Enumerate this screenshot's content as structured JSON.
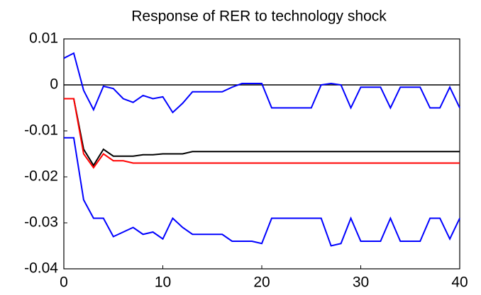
{
  "chart_data": {
    "type": "line",
    "title": "Response of RER to technology shock",
    "x": [
      0,
      1,
      2,
      3,
      4,
      5,
      6,
      7,
      8,
      9,
      10,
      11,
      12,
      13,
      14,
      15,
      16,
      17,
      18,
      19,
      20,
      21,
      22,
      23,
      24,
      25,
      26,
      27,
      28,
      29,
      30,
      31,
      32,
      33,
      34,
      35,
      36,
      37,
      38,
      39,
      40
    ],
    "series": [
      {
        "color": "#0000ff",
        "values": [
          0.0058,
          0.0069,
          -0.0012,
          -0.0054,
          -0.0003,
          -0.0008,
          -0.003,
          -0.0038,
          -0.0023,
          -0.003,
          -0.0026,
          -0.006,
          -0.004,
          -0.0015,
          -0.0015,
          -0.0015,
          -0.0015,
          -0.0005,
          0.0003,
          0.0003,
          0.0003,
          -0.005,
          -0.005,
          -0.005,
          -0.005,
          -0.005,
          0,
          0.0003,
          0,
          -0.005,
          -0.0005,
          -0.0005,
          -0.0005,
          -0.005,
          -0.0005,
          -0.0005,
          -0.0005,
          -0.005,
          -0.005,
          -0.0005,
          -0.005
        ]
      },
      {
        "color": "#000000",
        "values": [
          -0.003,
          -0.003,
          -0.014,
          -0.0175,
          -0.014,
          -0.0155,
          -0.0155,
          -0.0155,
          -0.0152,
          -0.0152,
          -0.015,
          -0.015,
          -0.015,
          -0.0145,
          -0.0145,
          -0.0145,
          -0.0145,
          -0.0145,
          -0.0145,
          -0.0145,
          -0.0145,
          -0.0145,
          -0.0145,
          -0.0145,
          -0.0145,
          -0.0145,
          -0.0145,
          -0.0145,
          -0.0145,
          -0.0145,
          -0.0145,
          -0.0145,
          -0.0145,
          -0.0145,
          -0.0145,
          -0.0145,
          -0.0145,
          -0.0145,
          -0.0145,
          -0.0145,
          -0.0145
        ]
      },
      {
        "color": "#ff0000",
        "values": [
          -0.003,
          -0.003,
          -0.015,
          -0.018,
          -0.015,
          -0.0165,
          -0.0165,
          -0.017,
          -0.017,
          -0.017,
          -0.017,
          -0.017,
          -0.017,
          -0.017,
          -0.017,
          -0.017,
          -0.017,
          -0.017,
          -0.017,
          -0.017,
          -0.017,
          -0.017,
          -0.017,
          -0.017,
          -0.017,
          -0.017,
          -0.017,
          -0.017,
          -0.017,
          -0.017,
          -0.017,
          -0.017,
          -0.017,
          -0.017,
          -0.017,
          -0.017,
          -0.017,
          -0.017,
          -0.017,
          -0.017,
          -0.017
        ]
      },
      {
        "color": "#0000ff",
        "values": [
          -0.0115,
          -0.0115,
          -0.025,
          -0.029,
          -0.029,
          -0.033,
          -0.032,
          -0.031,
          -0.0325,
          -0.032,
          -0.0335,
          -0.029,
          -0.031,
          -0.0325,
          -0.0325,
          -0.0325,
          -0.0325,
          -0.034,
          -0.034,
          -0.034,
          -0.0345,
          -0.029,
          -0.029,
          -0.029,
          -0.029,
          -0.029,
          -0.029,
          -0.035,
          -0.0345,
          -0.029,
          -0.034,
          -0.034,
          -0.034,
          -0.029,
          -0.034,
          -0.034,
          -0.034,
          -0.029,
          -0.029,
          -0.0335,
          -0.029
        ]
      }
    ],
    "hline": 0,
    "xlim": [
      0,
      40
    ],
    "xticks": [
      0,
      10,
      20,
      30,
      40
    ],
    "ylim": [
      -0.04,
      0.01
    ],
    "yticks": [
      0.01,
      0,
      -0.01,
      -0.02,
      -0.03,
      -0.04
    ]
  }
}
